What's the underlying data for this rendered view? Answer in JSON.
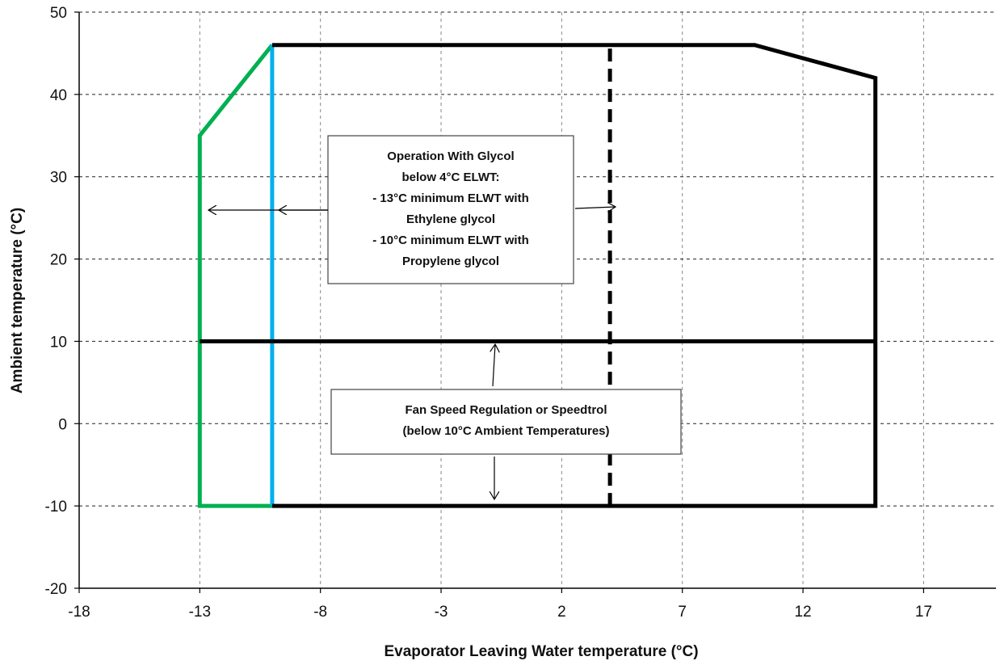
{
  "chart_data": {
    "type": "line",
    "xlabel": "Evaporator  Leaving Water temperature (°C)",
    "ylabel": "Ambient temperature  (°C)",
    "xlim": [
      -18,
      20
    ],
    "ylim": [
      -20,
      50
    ],
    "x_ticks": [
      -18,
      -13,
      -8,
      -3,
      2,
      7,
      12,
      17
    ],
    "y_ticks": [
      -20,
      -10,
      0,
      10,
      20,
      30,
      40,
      50
    ],
    "grid": true,
    "series": [
      {
        "color": "#00b050",
        "style": "solid",
        "x": [
          -10,
          -13,
          -13,
          -10
        ],
        "y": [
          -10,
          -10,
          35,
          46
        ]
      },
      {
        "color": "#00b0f0",
        "style": "solid",
        "x": [
          -10,
          -10
        ],
        "y": [
          -10,
          46
        ]
      },
      {
        "color": "#000000",
        "style": "solid",
        "x": [
          -10,
          10,
          15,
          15,
          -10
        ],
        "y": [
          46,
          46,
          42,
          -10,
          -10
        ]
      },
      {
        "color": "#000000",
        "style": "solid",
        "x": [
          -13,
          15
        ],
        "y": [
          10,
          10
        ]
      },
      {
        "color": "#000000",
        "style": "dashed",
        "x": [
          4,
          4
        ],
        "y": [
          -10,
          46
        ]
      }
    ],
    "annotations": [
      {
        "lines": [
          "Operation  With Glycol",
          "below 4°C ELWT:",
          "- 13°C minimum ELWT with",
          "Ethylene glycol",
          "- 10°C minimum ELWT with",
          "Propylene  glycol"
        ]
      },
      {
        "lines": [
          "Fan Speed Regulation or Speedtrol",
          "(below 10°C Ambient Temperatures)"
        ]
      }
    ]
  }
}
